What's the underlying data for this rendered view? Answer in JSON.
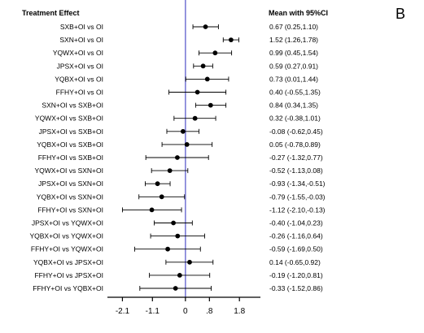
{
  "panel_label": "B",
  "headers": {
    "left": "Treatment Effect",
    "right": "Mean with 95%CI"
  },
  "colors": {
    "reference_line": "#7b7bd6",
    "marker": "#000000",
    "axis": "#000000"
  },
  "chart_data": {
    "type": "forest",
    "xlim": [
      -2.6,
      2.5
    ],
    "reference_value": 0,
    "xticks": [
      {
        "value": -2.1,
        "label": "-2.1"
      },
      {
        "value": -1.1,
        "label": "-1.1"
      },
      {
        "value": 0,
        "label": "0"
      },
      {
        "value": 0.8,
        "label": ".8"
      },
      {
        "value": 1.8,
        "label": "1.8"
      }
    ],
    "rows": [
      {
        "label": "SXB+OI vs OI",
        "mean": 0.67,
        "lo": 0.25,
        "hi": 1.1,
        "ci_text": "0.67 (0.25,1.10)"
      },
      {
        "label": "SXN+OI vs OI",
        "mean": 1.52,
        "lo": 1.26,
        "hi": 1.78,
        "ci_text": "1.52 (1.26,1.78)"
      },
      {
        "label": "YQWX+OI vs OI",
        "mean": 0.99,
        "lo": 0.45,
        "hi": 1.54,
        "ci_text": "0.99 (0.45,1.54)"
      },
      {
        "label": "JPSX+OI vs OI",
        "mean": 0.59,
        "lo": 0.27,
        "hi": 0.91,
        "ci_text": "0.59 (0.27,0.91)"
      },
      {
        "label": "YQBX+OI vs OI",
        "mean": 0.73,
        "lo": 0.01,
        "hi": 1.44,
        "ci_text": "0.73 (0.01,1.44)"
      },
      {
        "label": "FFHY+OI vs OI",
        "mean": 0.4,
        "lo": -0.55,
        "hi": 1.35,
        "ci_text": "0.40 (-0.55,1.35)"
      },
      {
        "label": "SXN+OI vs SXB+OI",
        "mean": 0.84,
        "lo": 0.34,
        "hi": 1.35,
        "ci_text": "0.84 (0.34,1.35)"
      },
      {
        "label": "YQWX+OI vs SXB+OI",
        "mean": 0.32,
        "lo": -0.38,
        "hi": 1.01,
        "ci_text": "0.32 (-0.38,1.01)"
      },
      {
        "label": "JPSX+OI vs SXB+OI",
        "mean": -0.08,
        "lo": -0.62,
        "hi": 0.45,
        "ci_text": "-0.08 (-0.62,0.45)"
      },
      {
        "label": "YQBX+OI vs SXB+OI",
        "mean": 0.05,
        "lo": -0.78,
        "hi": 0.89,
        "ci_text": "0.05 (-0.78,0.89)"
      },
      {
        "label": "FFHY+OI vs SXB+OI",
        "mean": -0.27,
        "lo": -1.32,
        "hi": 0.77,
        "ci_text": "-0.27 (-1.32,0.77)"
      },
      {
        "label": "YQWX+OI vs SXN+OI",
        "mean": -0.52,
        "lo": -1.13,
        "hi": 0.08,
        "ci_text": "-0.52 (-1.13,0.08)"
      },
      {
        "label": "JPSX+OI vs SXN+OI",
        "mean": -0.93,
        "lo": -1.34,
        "hi": -0.51,
        "ci_text": "-0.93 (-1.34,-0.51)"
      },
      {
        "label": "YQBX+OI vs SXN+OI",
        "mean": -0.79,
        "lo": -1.55,
        "hi": -0.03,
        "ci_text": "-0.79 (-1.55,-0.03)"
      },
      {
        "label": "FFHY+OI vs SXN+OI",
        "mean": -1.12,
        "lo": -2.1,
        "hi": -0.13,
        "ci_text": "-1.12 (-2.10,-0.13)"
      },
      {
        "label": "JPSX+OI vs YQWX+OI",
        "mean": -0.4,
        "lo": -1.04,
        "hi": 0.23,
        "ci_text": "-0.40 (-1.04,0.23)"
      },
      {
        "label": "YQBX+OI vs YQWX+OI",
        "mean": -0.26,
        "lo": -1.16,
        "hi": 0.64,
        "ci_text": "-0.26 (-1.16,0.64)"
      },
      {
        "label": "FFHY+OI vs YQWX+OI",
        "mean": -0.59,
        "lo": -1.69,
        "hi": 0.5,
        "ci_text": "-0.59 (-1.69,0.50)"
      },
      {
        "label": "YQBX+OI vs JPSX+OI",
        "mean": 0.14,
        "lo": -0.65,
        "hi": 0.92,
        "ci_text": "0.14 (-0.65,0.92)"
      },
      {
        "label": "FFHY+OI vs JPSX+OI",
        "mean": -0.19,
        "lo": -1.2,
        "hi": 0.81,
        "ci_text": "-0.19 (-1.20,0.81)"
      },
      {
        "label": "FFHY+OI vs YQBX+OI",
        "mean": -0.33,
        "lo": -1.52,
        "hi": 0.86,
        "ci_text": "-0.33 (-1.52,0.86)"
      }
    ]
  }
}
